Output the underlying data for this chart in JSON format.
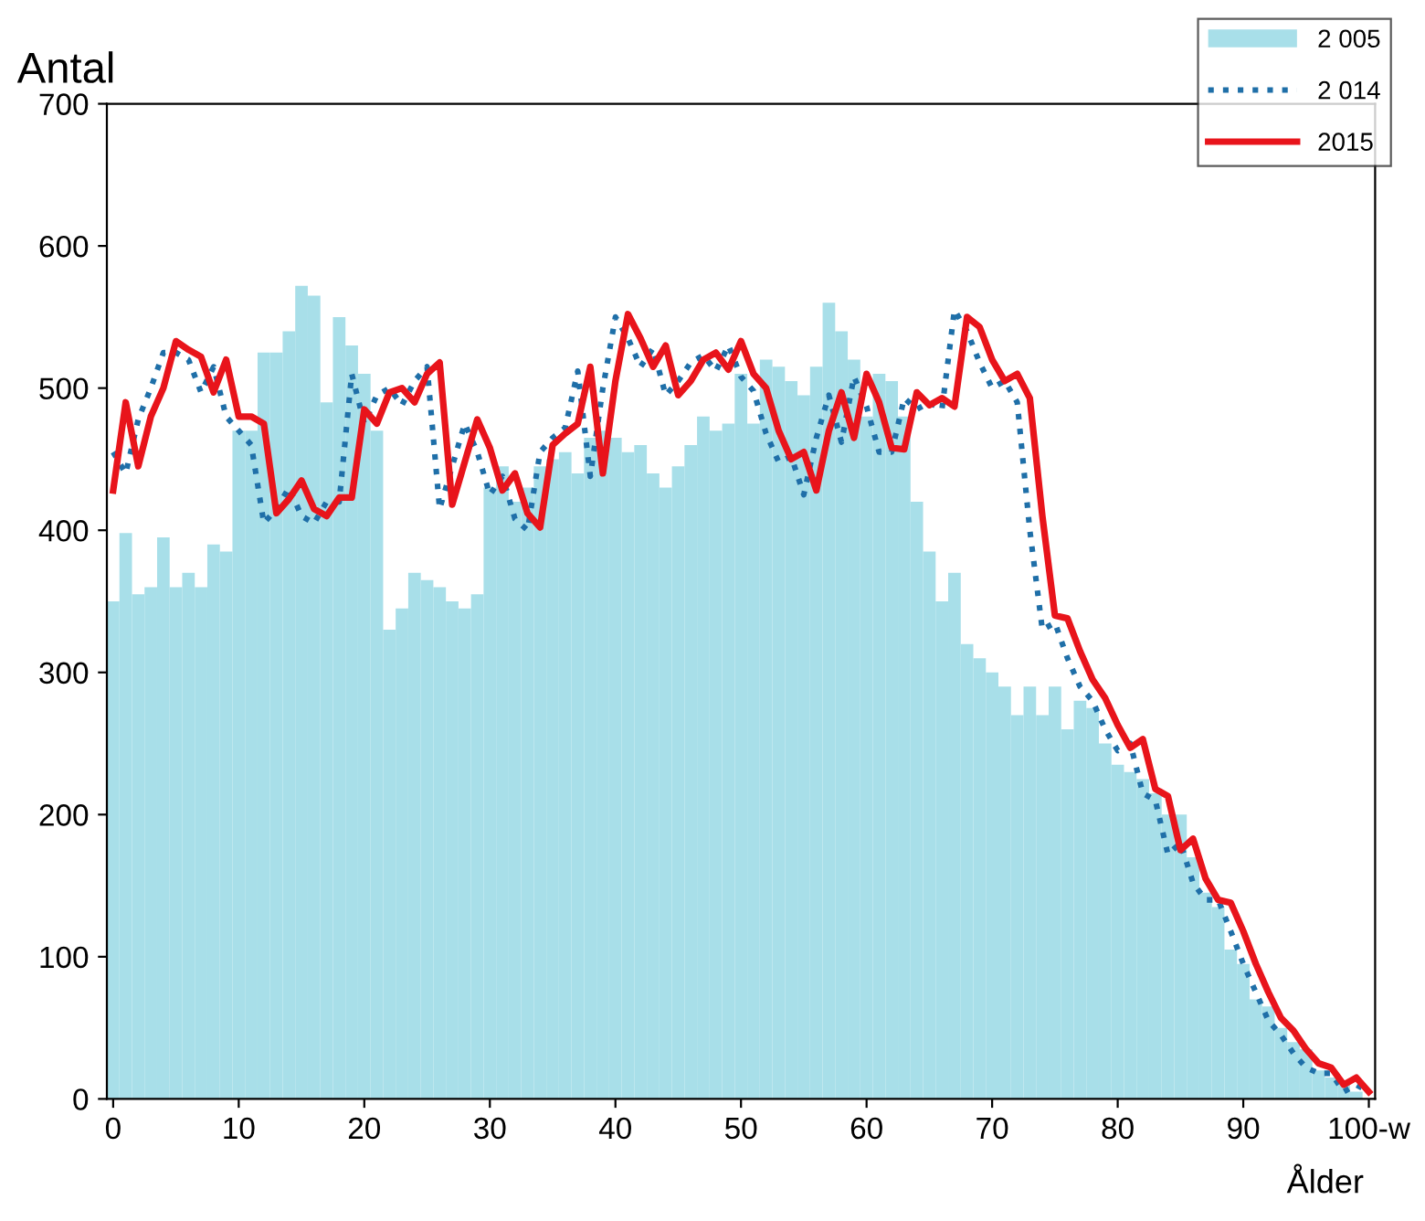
{
  "chart_data": {
    "type": "line",
    "ylabel": "Antal",
    "xlabel": "Ålder",
    "categories": [
      "0",
      null,
      null,
      null,
      null,
      null,
      null,
      null,
      null,
      null,
      "10",
      null,
      null,
      null,
      null,
      null,
      null,
      null,
      null,
      null,
      "20",
      null,
      null,
      null,
      null,
      null,
      null,
      null,
      null,
      null,
      "30",
      null,
      null,
      null,
      null,
      null,
      null,
      null,
      null,
      null,
      "40",
      null,
      null,
      null,
      null,
      null,
      null,
      null,
      null,
      null,
      "50",
      null,
      null,
      null,
      null,
      null,
      null,
      null,
      null,
      null,
      "60",
      null,
      null,
      null,
      null,
      null,
      null,
      null,
      null,
      null,
      "70",
      null,
      null,
      null,
      null,
      null,
      null,
      null,
      null,
      null,
      "80",
      null,
      null,
      null,
      null,
      null,
      null,
      null,
      null,
      null,
      "90",
      null,
      null,
      null,
      null,
      null,
      null,
      null,
      null,
      null,
      "100-w"
    ],
    "ylim": [
      0,
      700
    ],
    "yticks": [
      0,
      100,
      200,
      300,
      400,
      500,
      600,
      700
    ],
    "grid": false,
    "legend": "top right",
    "series": [
      {
        "name": "2 005",
        "type": "bar",
        "color": "#a8dfe9",
        "values": [
          350,
          398,
          355,
          360,
          395,
          360,
          370,
          360,
          390,
          385,
          470,
          470,
          525,
          525,
          540,
          572,
          565,
          490,
          550,
          530,
          510,
          470,
          330,
          345,
          370,
          365,
          360,
          350,
          345,
          355,
          430,
          445,
          420,
          430,
          445,
          450,
          455,
          440,
          465,
          470,
          465,
          455,
          460,
          440,
          430,
          445,
          460,
          480,
          470,
          475,
          510,
          475,
          520,
          515,
          505,
          495,
          515,
          560,
          540,
          520,
          480,
          510,
          505,
          480,
          420,
          385,
          350,
          370,
          320,
          310,
          300,
          290,
          270,
          290,
          270,
          290,
          260,
          280,
          275,
          250,
          235,
          230,
          225,
          215,
          200,
          200,
          170,
          145,
          135,
          105,
          95,
          70,
          65,
          50,
          40,
          35,
          20,
          15,
          10,
          5,
          null
        ]
      },
      {
        "name": "2 014",
        "line_style": "dotted",
        "color": "#1f6fa8",
        "values": [
          455,
          440,
          478,
          500,
          525,
          525,
          520,
          497,
          515,
          480,
          470,
          460,
          405,
          415,
          430,
          410,
          405,
          420,
          420,
          510,
          475,
          495,
          500,
          488,
          505,
          515,
          415,
          445,
          475,
          455,
          425,
          438,
          408,
          400,
          455,
          465,
          472,
          512,
          438,
          500,
          550,
          535,
          515,
          528,
          495,
          505,
          518,
          523,
          512,
          530,
          508,
          498,
          468,
          448,
          452,
          425,
          465,
          495,
          462,
          508,
          487,
          455,
          455,
          493,
          485,
          490,
          485,
          555,
          540,
          518,
          500,
          505,
          490,
          400,
          330,
          335,
          310,
          290,
          280,
          260,
          245,
          250,
          215,
          210,
          172,
          180,
          152,
          140,
          140,
          118,
          95,
          75,
          55,
          45,
          32,
          22,
          18,
          18,
          5,
          10,
          5
        ]
      },
      {
        "name": "2015",
        "line_style": "solid",
        "color": "#e8141b",
        "values": [
          428,
          490,
          445,
          480,
          500,
          533,
          527,
          522,
          497,
          520,
          480,
          480,
          475,
          412,
          422,
          435,
          415,
          410,
          423,
          423,
          485,
          475,
          497,
          500,
          490,
          510,
          518,
          418,
          448,
          478,
          458,
          428,
          440,
          412,
          402,
          460,
          468,
          475,
          515,
          440,
          505,
          552,
          535,
          515,
          530,
          495,
          505,
          520,
          525,
          513,
          533,
          510,
          500,
          470,
          450,
          455,
          428,
          470,
          497,
          465,
          510,
          490,
          458,
          457,
          497,
          488,
          493,
          487,
          550,
          543,
          520,
          505,
          510,
          493,
          410,
          340,
          338,
          315,
          295,
          282,
          263,
          247,
          253,
          218,
          213,
          175,
          183,
          155,
          140,
          138,
          118,
          95,
          75,
          57,
          48,
          35,
          25,
          22,
          10,
          15,
          5
        ]
      }
    ]
  }
}
